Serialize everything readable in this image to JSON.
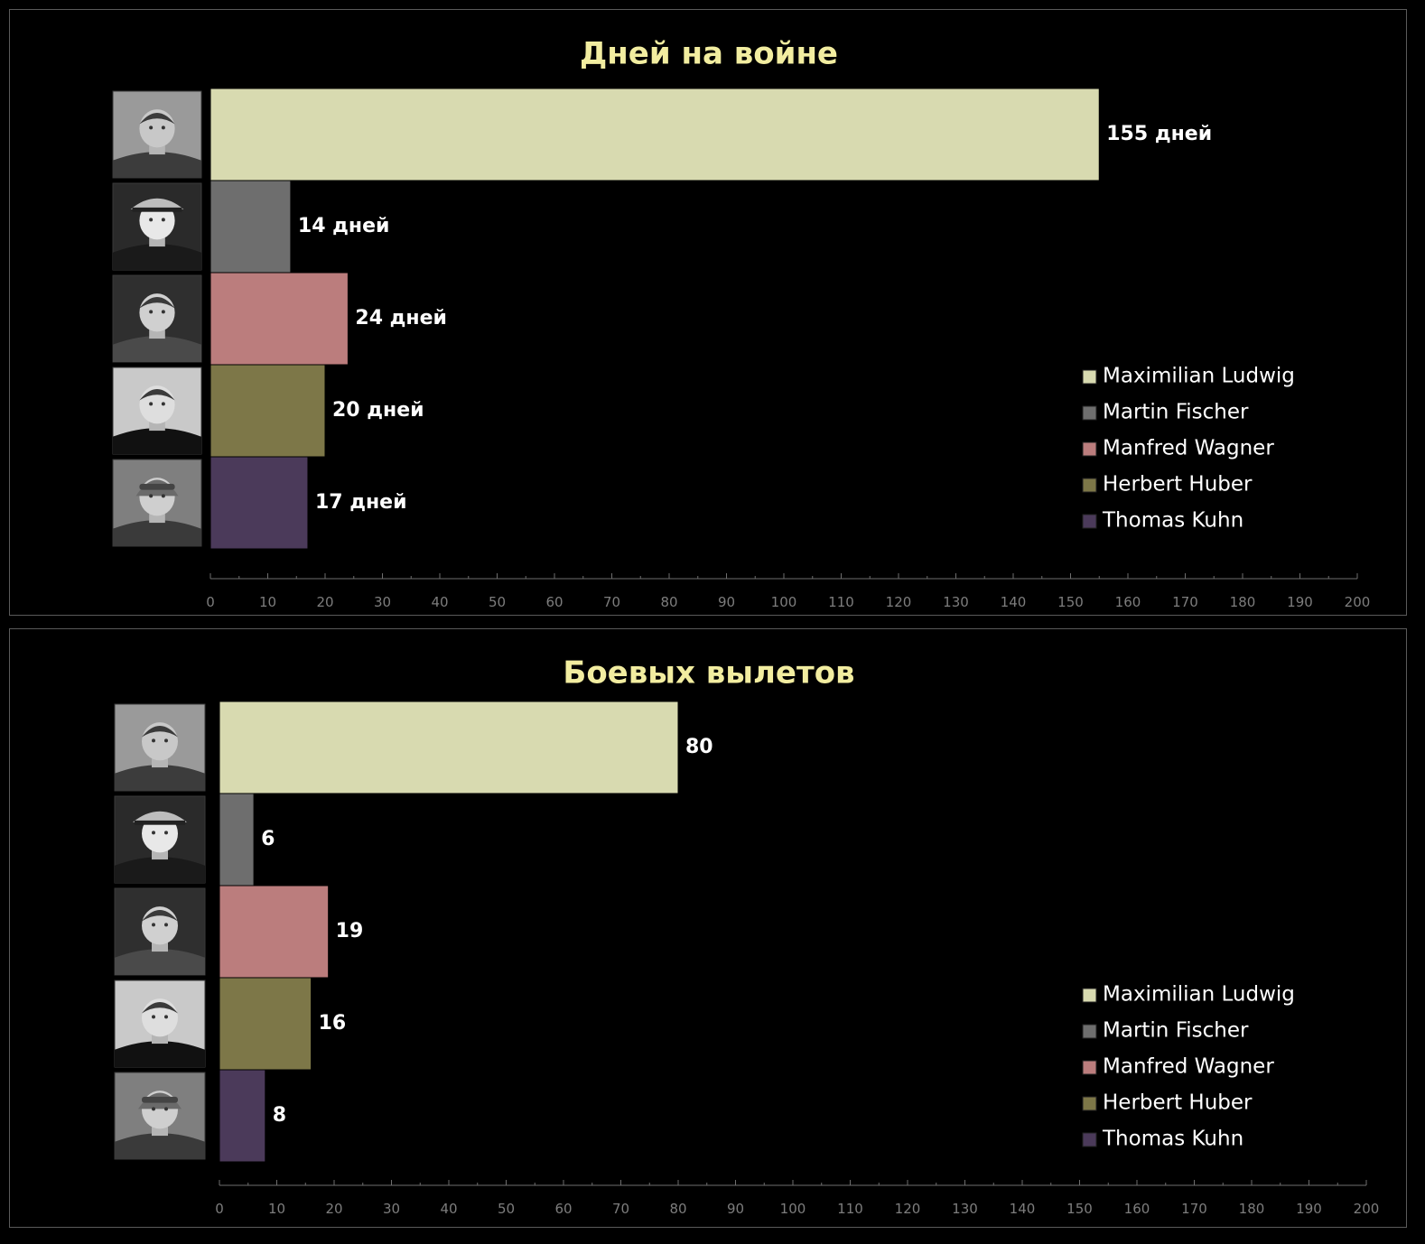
{
  "chart_data": [
    {
      "type": "bar",
      "orientation": "horizontal",
      "title": "Дней на войне",
      "categories": [
        "Maximilian Ludwig",
        "Martin Fischer",
        "Manfred Wagner",
        "Herbert Huber",
        "Thomas Kuhn"
      ],
      "values": [
        155,
        14,
        24,
        20,
        17
      ],
      "data_labels": [
        "155 дней",
        "14 дней",
        "24 дней",
        "20 дней",
        "17 дней"
      ],
      "colors": [
        "#d8dab0",
        "#6e6e6e",
        "#bb7d7d",
        "#7d7748",
        "#4b3a5a"
      ],
      "xlim": [
        0,
        200
      ],
      "x_ticks": [
        0,
        10,
        20,
        30,
        40,
        50,
        60,
        70,
        80,
        90,
        100,
        110,
        120,
        130,
        140,
        150,
        160,
        170,
        180,
        190,
        200
      ],
      "legend": "right",
      "grid": false
    },
    {
      "type": "bar",
      "orientation": "horizontal",
      "title": "Боевых вылетов",
      "categories": [
        "Maximilian Ludwig",
        "Martin Fischer",
        "Manfred Wagner",
        "Herbert Huber",
        "Thomas Kuhn"
      ],
      "values": [
        80,
        6,
        19,
        16,
        8
      ],
      "data_labels": [
        "80",
        "6",
        "19",
        "16",
        "8"
      ],
      "colors": [
        "#d8dab0",
        "#6e6e6e",
        "#bb7d7d",
        "#7d7748",
        "#4b3a5a"
      ],
      "xlim": [
        0,
        200
      ],
      "x_ticks": [
        0,
        10,
        20,
        30,
        40,
        50,
        60,
        70,
        80,
        90,
        100,
        110,
        120,
        130,
        140,
        150,
        160,
        170,
        180,
        190,
        200
      ],
      "legend": "right",
      "grid": false
    }
  ],
  "portrait_icons": [
    "soldier-portrait-icon",
    "officer-cap-portrait-icon",
    "pilot-portrait-icon",
    "pilot-portrait-icon",
    "flight-helmet-portrait-icon"
  ]
}
